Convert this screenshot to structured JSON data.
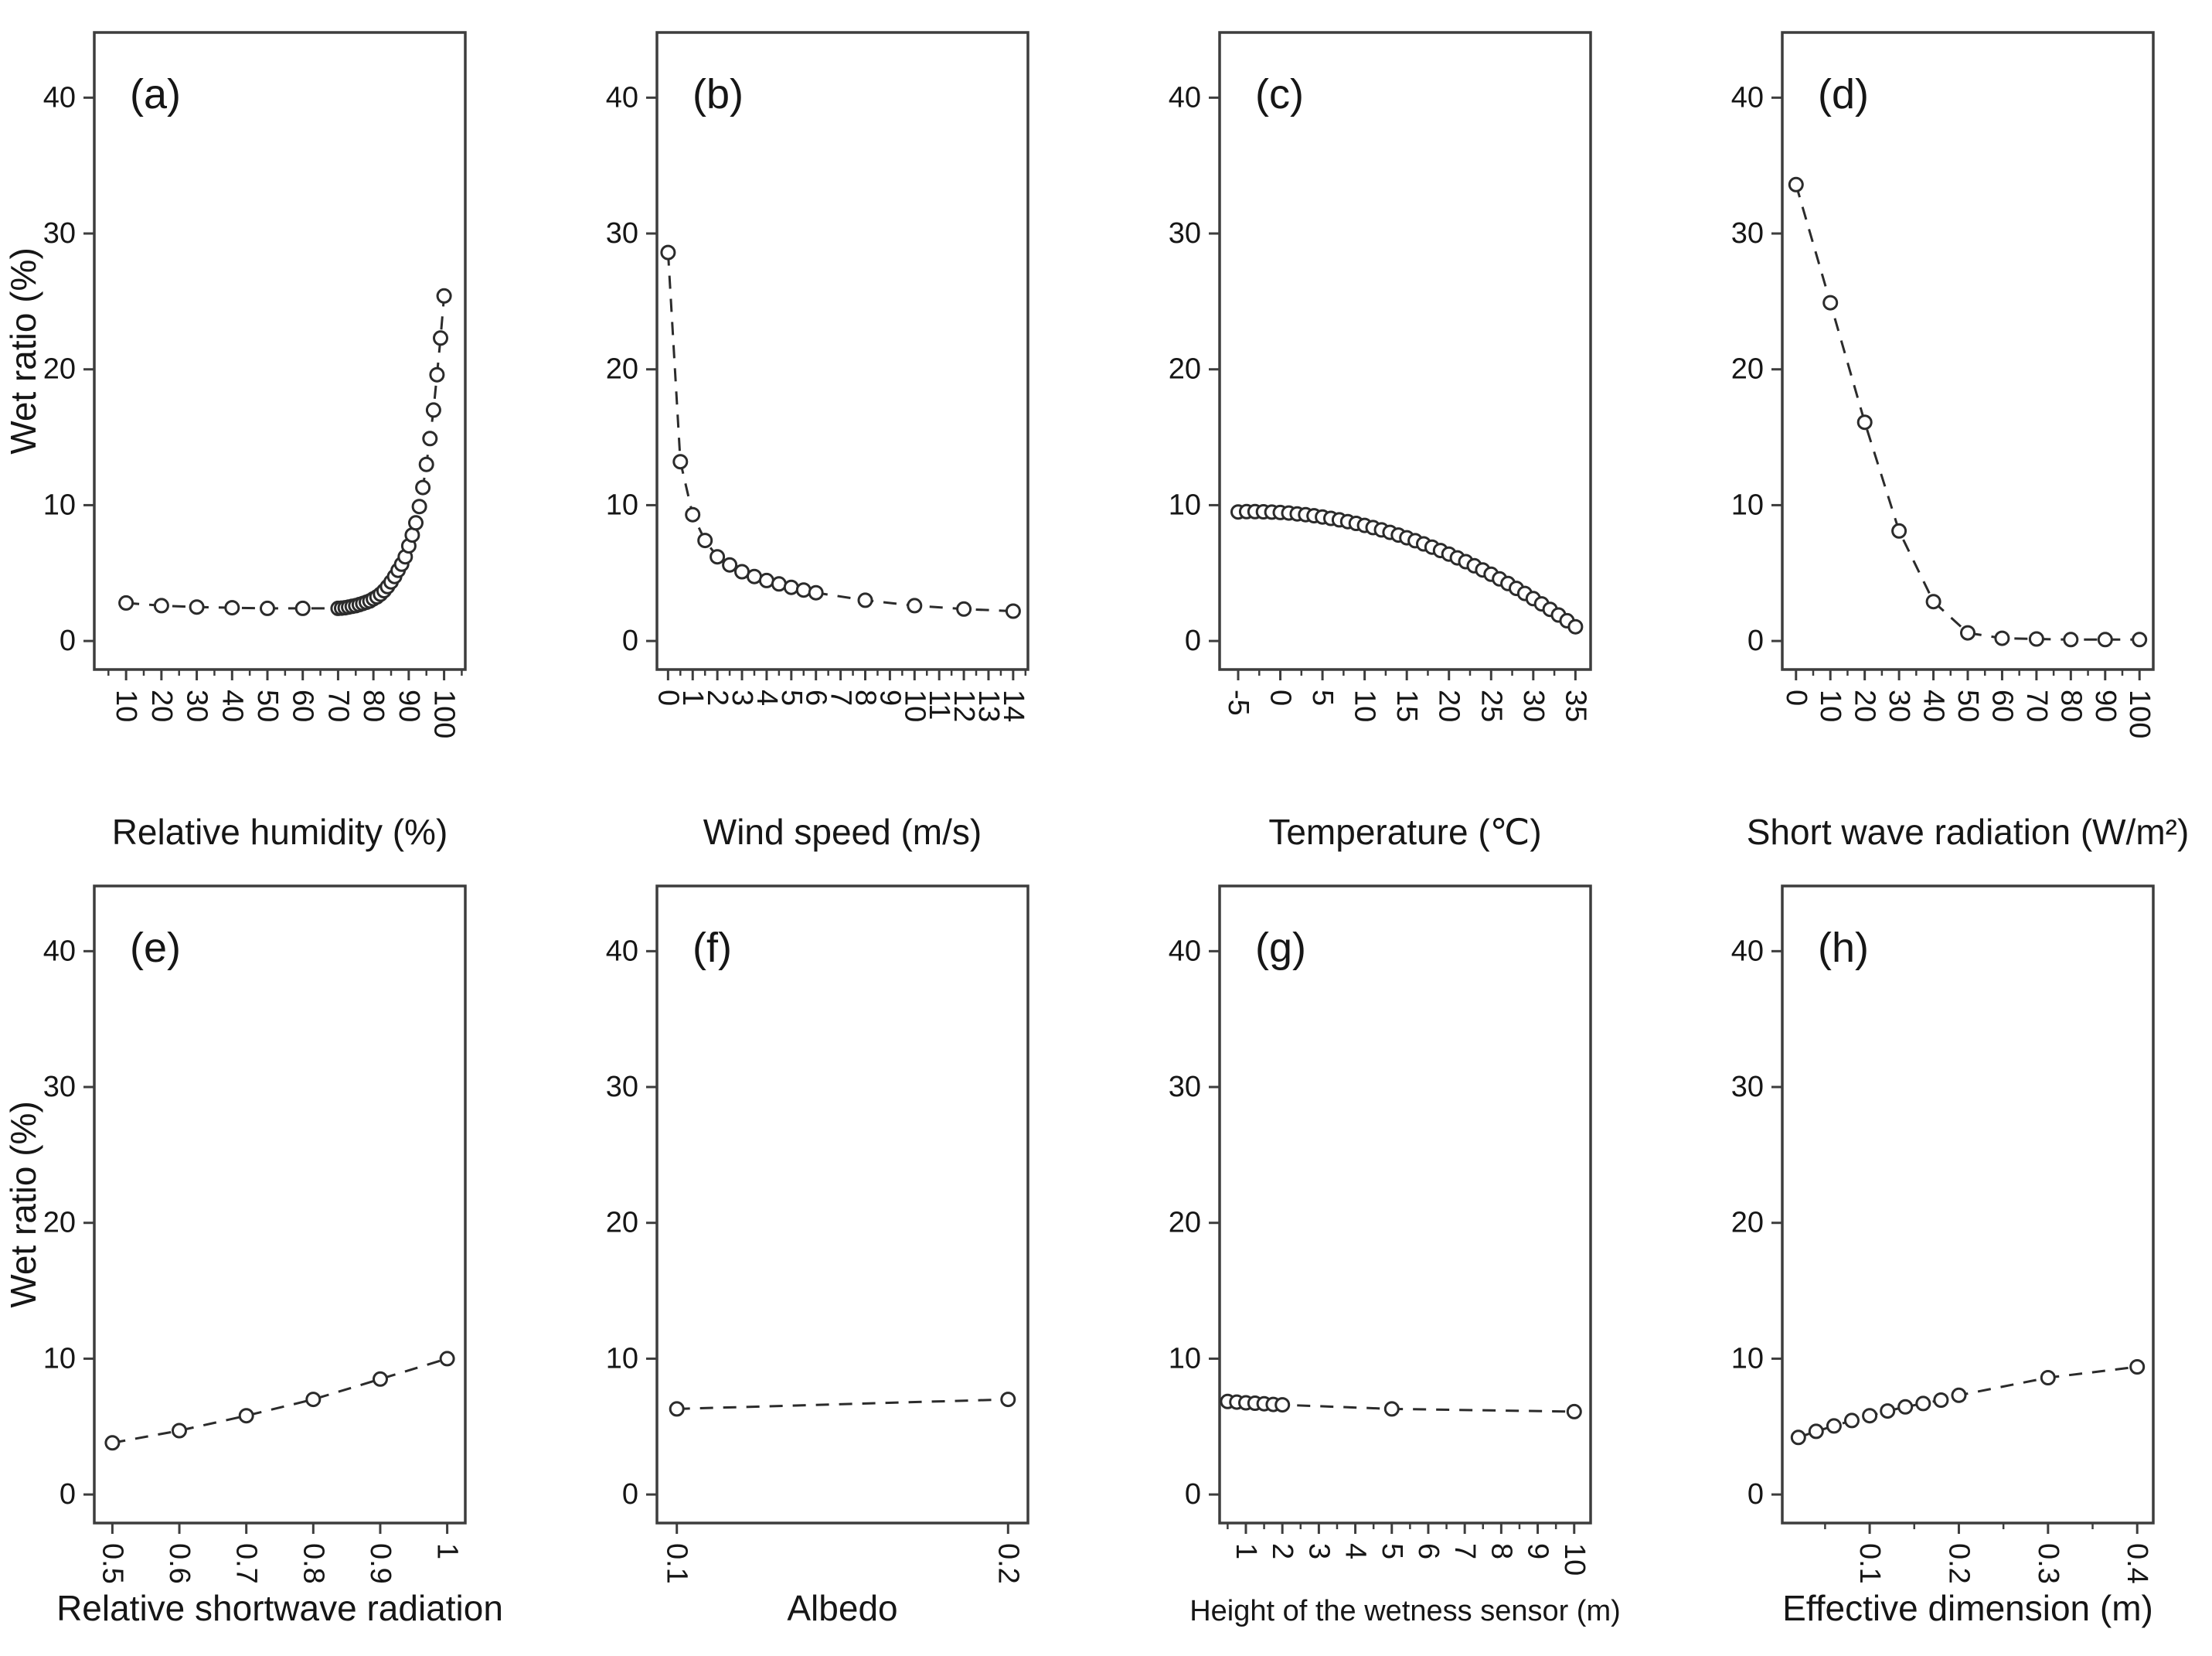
{
  "figure": {
    "background": "#ffffff",
    "frame_color": "#3d3d3d",
    "text_color": "#161616",
    "marker_color": "#2b2b2b",
    "grid": false,
    "legend": "none",
    "ylabel": "Wet ratio (%)",
    "ytick_values": [
      0,
      10,
      20,
      30,
      40
    ],
    "ytick_labels": [
      "0",
      "10",
      "20",
      "30",
      "40"
    ],
    "ylim": [
      -2.1,
      44.8
    ]
  },
  "chart_data": [
    {
      "id": "a",
      "type": "scatter",
      "panel_label": "(a)",
      "xlabel": "Relative humidity (%)",
      "ylabel": "Wet ratio (%)",
      "xlim": [
        1,
        106
      ],
      "xtick_values": [
        10,
        20,
        30,
        40,
        50,
        60,
        70,
        80,
        90,
        100
      ],
      "xtick_labels": [
        "10",
        "20",
        "30",
        "40",
        "50",
        "60",
        "70",
        "80",
        "90",
        "100"
      ],
      "xminor_values": [
        5,
        15,
        25,
        35,
        45,
        55,
        65,
        75,
        85,
        95,
        105
      ],
      "show_y_title": true,
      "x": [
        10,
        20,
        30,
        40,
        50,
        60,
        70,
        71,
        72,
        73,
        74,
        75,
        76,
        77,
        78,
        79,
        80,
        81,
        82,
        83,
        84,
        85,
        86,
        87,
        88,
        89,
        90,
        91,
        92,
        93,
        94,
        95,
        96,
        97,
        98,
        99,
        100
      ],
      "y": [
        2.8,
        2.6,
        2.5,
        2.45,
        2.4,
        2.4,
        2.4,
        2.42,
        2.45,
        2.5,
        2.55,
        2.6,
        2.68,
        2.76,
        2.85,
        2.95,
        3.1,
        3.25,
        3.45,
        3.7,
        4.0,
        4.35,
        4.75,
        5.2,
        5.65,
        6.2,
        7.0,
        7.8,
        8.7,
        9.9,
        11.3,
        13.0,
        14.9,
        17.0,
        19.6,
        22.3,
        25.4
      ]
    },
    {
      "id": "b",
      "type": "scatter",
      "panel_label": "(b)",
      "xlabel": "Wind speed (m/s)",
      "ylabel": "Wet ratio (%)",
      "xlim": [
        -0.45,
        14.6
      ],
      "xtick_values": [
        0,
        1,
        2,
        3,
        4,
        5,
        6,
        7,
        8,
        9,
        10,
        11,
        12,
        13,
        14
      ],
      "xtick_labels": [
        "0",
        "1",
        "2",
        "3",
        "4",
        "5",
        "6",
        "7",
        "8",
        "9",
        "10",
        "11",
        "12",
        "13",
        "14"
      ],
      "xminor_values": [
        0.5,
        1.5,
        2.5,
        3.5,
        4.5,
        5.5,
        6.5,
        7.5,
        8.5,
        9.5,
        10.5,
        11.5,
        12.5,
        13.5,
        14.5
      ],
      "show_y_title": false,
      "x": [
        0,
        0.5,
        1,
        1.5,
        2,
        2.5,
        3,
        3.5,
        4,
        4.5,
        5,
        5.5,
        6,
        8,
        10,
        12,
        14
      ],
      "y": [
        28.6,
        13.2,
        9.3,
        7.4,
        6.2,
        5.6,
        5.1,
        4.75,
        4.45,
        4.2,
        3.95,
        3.75,
        3.55,
        3.0,
        2.6,
        2.35,
        2.2
      ]
    },
    {
      "id": "c",
      "type": "scatter",
      "panel_label": "(c)",
      "xlabel": "Temperature (℃)",
      "ylabel": "Wet ratio (%)",
      "xlim": [
        -7.2,
        36.8
      ],
      "xtick_values": [
        -5,
        0,
        5,
        10,
        15,
        20,
        25,
        30,
        35
      ],
      "xtick_labels": [
        "-5",
        "0",
        "5",
        "10",
        "15",
        "20",
        "25",
        "30",
        "35"
      ],
      "xminor_values": [
        -2.5,
        2.5,
        7.5,
        12.5,
        17.5,
        22.5,
        27.5,
        32.5
      ],
      "show_y_title": false,
      "x": [
        -5,
        -4,
        -3,
        -2,
        -1,
        0,
        1,
        2,
        3,
        4,
        5,
        6,
        7,
        8,
        9,
        10,
        11,
        12,
        13,
        14,
        15,
        16,
        17,
        18,
        19,
        20,
        21,
        22,
        23,
        24,
        25,
        26,
        27,
        28,
        29,
        30,
        31,
        32,
        33,
        34,
        35
      ],
      "y": [
        9.5,
        9.52,
        9.52,
        9.51,
        9.49,
        9.46,
        9.42,
        9.36,
        9.3,
        9.22,
        9.13,
        9.03,
        8.92,
        8.79,
        8.66,
        8.51,
        8.35,
        8.18,
        8.0,
        7.8,
        7.6,
        7.38,
        7.15,
        6.91,
        6.66,
        6.4,
        6.12,
        5.84,
        5.54,
        5.23,
        4.91,
        4.57,
        4.23,
        3.87,
        3.5,
        3.12,
        2.73,
        2.33,
        1.91,
        1.49,
        1.05
      ]
    },
    {
      "id": "d",
      "type": "scatter",
      "panel_label": "(d)",
      "xlabel": "Short wave radiation (W/m²)",
      "ylabel": "Wet ratio (%)",
      "xlim": [
        -4,
        104
      ],
      "xtick_values": [
        0,
        10,
        20,
        30,
        40,
        50,
        60,
        70,
        80,
        90,
        100
      ],
      "xtick_labels": [
        "0",
        "10",
        "20",
        "30",
        "40",
        "50",
        "60",
        "70",
        "80",
        "90",
        "100"
      ],
      "xminor_values": [
        5,
        15,
        25,
        35,
        45,
        55,
        65,
        75,
        85,
        95
      ],
      "show_y_title": false,
      "x": [
        0,
        10,
        20,
        30,
        40,
        50,
        60,
        70,
        80,
        90,
        100
      ],
      "y": [
        33.6,
        24.9,
        16.1,
        8.1,
        2.9,
        0.6,
        0.2,
        0.15,
        0.1,
        0.1,
        0.1
      ]
    },
    {
      "id": "e",
      "type": "scatter",
      "panel_label": "(e)",
      "xlabel": "Relative shortwave radiation",
      "ylabel": "Wet ratio (%)",
      "xlim": [
        0.473,
        1.027
      ],
      "xtick_values": [
        0.5,
        0.6,
        0.7,
        0.8,
        0.9,
        1.0
      ],
      "xtick_labels": [
        "0.5",
        "0.6",
        "0.7",
        "0.8",
        "0.9",
        "1"
      ],
      "xminor_values": [],
      "show_y_title": true,
      "x": [
        0.5,
        0.6,
        0.7,
        0.8,
        0.9,
        1.0
      ],
      "y": [
        3.8,
        4.7,
        5.8,
        7.0,
        8.5,
        10.0
      ]
    },
    {
      "id": "f",
      "type": "scatter",
      "panel_label": "(f)",
      "xlabel": "Albedo",
      "ylabel": "Wet ratio (%)",
      "xlim": [
        0.094,
        0.206
      ],
      "xtick_values": [
        0.1,
        0.2
      ],
      "xtick_labels": [
        "0.1",
        "0.2"
      ],
      "xminor_values": [],
      "show_y_title": false,
      "x": [
        0.1,
        0.2
      ],
      "y": [
        6.3,
        7.0
      ]
    },
    {
      "id": "g",
      "type": "scatter",
      "panel_label": "(g)",
      "xlabel": "Height of the wetness sensor (m)",
      "ylabel": "Wet ratio (%)",
      "xlim": [
        0.28,
        10.45
      ],
      "xtick_values": [
        1,
        2,
        3,
        4,
        5,
        6,
        7,
        8,
        9,
        10
      ],
      "xtick_labels": [
        "1",
        "2",
        "3",
        "4",
        "5",
        "6",
        "7",
        "8",
        "9",
        "10"
      ],
      "xminor_values": [
        0.5,
        1.5,
        2.5,
        3.5,
        4.5,
        5.5,
        6.5,
        7.5,
        8.5,
        9.5
      ],
      "show_y_title": false,
      "x": [
        0.5,
        0.75,
        1,
        1.25,
        1.5,
        1.75,
        2,
        5,
        10
      ],
      "y": [
        6.85,
        6.8,
        6.75,
        6.72,
        6.68,
        6.63,
        6.6,
        6.3,
        6.1
      ]
    },
    {
      "id": "h",
      "type": "scatter",
      "panel_label": "(h)",
      "xlabel": "Effective dimension (m)",
      "ylabel": "Wet ratio (%)",
      "xlim": [
        0.002,
        0.418
      ],
      "xtick_values": [
        0.1,
        0.2,
        0.3,
        0.4
      ],
      "xtick_labels": [
        "0.1",
        "0.2",
        "0.3",
        "0.4"
      ],
      "xminor_values": [
        0.05,
        0.15,
        0.25,
        0.35
      ],
      "show_y_title": false,
      "x": [
        0.02,
        0.04,
        0.06,
        0.08,
        0.1,
        0.12,
        0.14,
        0.16,
        0.18,
        0.2,
        0.3,
        0.4
      ],
      "y": [
        4.2,
        4.65,
        5.05,
        5.45,
        5.8,
        6.15,
        6.45,
        6.7,
        6.95,
        7.3,
        8.6,
        9.4
      ]
    }
  ]
}
